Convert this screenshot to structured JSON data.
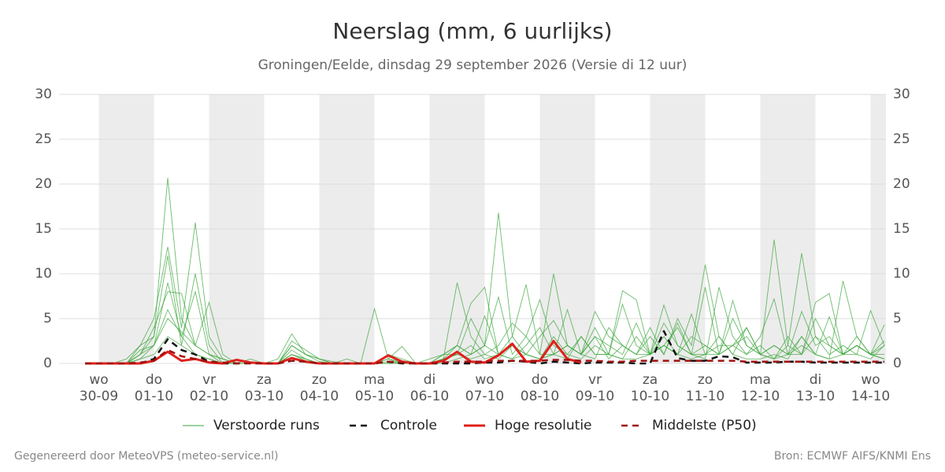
{
  "chart_data": {
    "type": "line",
    "title": "Neerslag (mm, 6 uurlijks)",
    "subtitle": "Groningen/Eelde, dinsdag 29 september 2026 (Versie di 12 uur)",
    "footer_left": "Gegenereerd door MeteoVPS (meteo-service.nl)",
    "footer_right": "Bron: ECMWF AIFS/KNMI Ens",
    "ylim": [
      0,
      30
    ],
    "yticks": [
      0,
      5,
      10,
      15,
      20,
      25,
      30
    ],
    "grid": true,
    "categories": [
      null,
      {
        "day": "wo",
        "date": "30-09"
      },
      null,
      null,
      null,
      {
        "day": "do",
        "date": "01-10"
      },
      null,
      null,
      null,
      {
        "day": "vr",
        "date": "02-10"
      },
      null,
      null,
      null,
      {
        "day": "za",
        "date": "03-10"
      },
      null,
      null,
      null,
      {
        "day": "zo",
        "date": "04-10"
      },
      null,
      null,
      null,
      {
        "day": "ma",
        "date": "05-10"
      },
      null,
      null,
      null,
      {
        "day": "di",
        "date": "06-10"
      },
      null,
      null,
      null,
      {
        "day": "wo",
        "date": "07-10"
      },
      null,
      null,
      null,
      {
        "day": "do",
        "date": "08-10"
      },
      null,
      null,
      null,
      {
        "day": "vr",
        "date": "09-10"
      },
      null,
      null,
      null,
      {
        "day": "za",
        "date": "10-10"
      },
      null,
      null,
      null,
      {
        "day": "zo",
        "date": "11-10"
      },
      null,
      null,
      null,
      {
        "day": "ma",
        "date": "12-10"
      },
      null,
      null,
      null,
      {
        "day": "di",
        "date": "13-10"
      },
      null,
      null,
      null,
      {
        "day": "wo",
        "date": "14-10"
      },
      null
    ],
    "ensemble": {
      "name": "Verstoorde runs",
      "color": "#3aa63a",
      "members": [
        [
          0,
          0,
          0,
          0,
          0.5,
          2,
          9,
          3,
          1,
          0.5,
          0,
          0,
          0,
          0,
          0,
          2,
          1,
          0.2,
          0,
          0,
          0,
          0,
          0.5,
          0.2,
          0,
          0,
          0.5,
          9,
          3,
          1,
          0.5,
          2,
          1,
          0.5,
          3,
          1,
          0.5,
          2,
          1,
          0.5,
          3,
          1,
          6.5,
          2,
          1,
          0.5,
          8.5,
          3,
          1,
          2,
          0.5,
          1,
          3,
          1,
          0.5,
          9.2,
          3,
          1,
          0.5
        ],
        [
          0,
          0,
          0,
          0,
          1,
          3,
          20.7,
          5,
          2,
          1,
          0,
          0,
          0,
          0,
          0,
          1,
          0.5,
          0,
          0,
          0,
          0,
          0,
          0,
          0,
          0,
          0,
          1,
          2,
          6.7,
          8.5,
          1,
          0.5,
          2,
          4,
          1,
          6,
          1,
          3,
          0.5,
          2,
          1,
          4,
          1,
          5,
          2,
          11,
          3,
          1,
          4,
          1,
          13.8,
          2,
          1,
          5,
          2,
          1,
          3,
          1,
          2
        ],
        [
          0,
          0,
          0,
          0.5,
          2,
          5,
          13,
          4,
          15.7,
          3,
          0.5,
          0,
          0,
          0,
          0.5,
          3.3,
          1,
          0.5,
          0.2,
          0,
          0,
          0,
          0,
          0.3,
          0,
          0,
          0.5,
          1,
          5,
          2,
          16.8,
          3,
          1,
          0.5,
          1,
          2,
          1,
          0.5,
          4,
          2,
          1,
          3,
          1,
          4.5,
          1,
          2,
          1,
          5,
          2,
          1,
          0.5,
          2,
          12.3,
          3,
          1,
          2,
          1,
          0.5,
          2
        ],
        [
          0,
          0,
          0,
          0,
          1,
          4,
          8,
          7.8,
          2,
          6.8,
          1,
          0,
          0.5,
          0,
          0,
          1,
          0.3,
          0,
          0,
          0,
          0,
          6.1,
          0.5,
          0,
          0,
          0,
          0.5,
          2,
          1,
          5.3,
          1,
          3,
          8.8,
          1,
          10,
          2,
          1,
          4,
          1,
          6.6,
          2,
          1,
          2,
          4,
          1,
          1,
          1,
          7,
          2,
          1,
          0.5,
          3,
          1,
          6.8,
          7.8,
          1,
          2,
          1,
          4.3
        ],
        [
          0,
          0,
          0,
          0,
          2,
          3,
          12,
          2,
          10,
          2,
          0,
          0,
          0,
          0,
          0,
          2.5,
          1.5,
          0.5,
          0,
          0,
          0,
          0,
          0.5,
          1.9,
          0,
          0,
          1,
          2,
          1,
          2,
          7.4,
          1,
          3,
          7.1,
          2,
          1,
          3,
          1,
          1,
          8.1,
          7.1,
          1,
          3,
          1,
          5.5,
          1,
          2,
          2,
          1,
          3,
          7.2,
          1,
          2,
          1,
          5.2,
          1,
          2,
          1,
          0.5
        ],
        [
          0,
          0,
          0,
          0,
          1.5,
          2,
          6,
          3,
          8,
          1,
          0.5,
          0,
          0,
          0,
          0,
          1.5,
          0.5,
          0,
          0,
          0.5,
          0,
          0,
          1,
          0.5,
          0,
          0.5,
          1,
          1,
          0.5,
          1,
          2,
          4.5,
          3,
          1,
          1,
          2,
          1,
          5.8,
          3,
          2,
          1,
          1,
          4.5,
          2,
          1,
          8.5,
          1,
          2,
          3,
          1,
          2,
          1,
          5.8,
          2,
          3,
          1,
          1,
          5.9,
          2
        ],
        [
          0,
          0,
          0,
          0,
          0.5,
          1,
          3,
          2,
          1,
          0.5,
          0,
          0,
          0,
          0,
          0,
          1,
          0.5,
          0,
          0,
          0,
          0,
          0,
          0.2,
          0,
          0,
          0,
          0,
          0.5,
          1,
          2,
          1,
          0.5,
          1,
          0.5,
          1,
          0.5,
          3,
          1,
          1,
          0.5,
          0.5,
          1,
          2,
          1,
          0.5,
          1,
          3,
          1,
          0.5,
          0.5,
          1,
          0.5,
          3,
          1,
          0.5,
          1,
          2,
          1,
          1
        ],
        [
          0,
          0,
          0,
          0,
          1,
          2,
          5,
          3.5,
          2,
          1,
          0.5,
          0,
          0,
          0,
          0,
          2,
          1,
          0.5,
          0,
          0,
          0,
          0,
          1,
          0,
          0,
          0,
          0.5,
          1,
          2,
          0.5,
          1,
          2,
          1,
          3,
          4.8,
          2,
          1,
          3,
          2,
          1,
          4.5,
          1,
          2,
          1,
          3,
          2,
          1,
          2,
          4,
          1,
          2,
          1,
          1,
          3,
          2,
          1,
          2,
          1,
          2.5
        ]
      ]
    },
    "series": [
      {
        "name": "Controle",
        "color": "#111111",
        "style": "dashed",
        "values": [
          0,
          0,
          0,
          0,
          0,
          0.5,
          2.7,
          1.5,
          1,
          0.2,
          0,
          0,
          0.1,
          0,
          0,
          0.3,
          0.2,
          0,
          0,
          0,
          0,
          0,
          0.2,
          0,
          0,
          0,
          0,
          0,
          0,
          0.1,
          0.1,
          0.3,
          0.2,
          0,
          0.2,
          0.1,
          0,
          0.1,
          0.1,
          0.1,
          0,
          0,
          3.6,
          0.6,
          0.3,
          0.3,
          0.8,
          0.7,
          0.1,
          0.1,
          0.1,
          0.2,
          0.2,
          0.1,
          0.1,
          0.1,
          0.1,
          0.1,
          0.1
        ]
      },
      {
        "name": "Hoge resolutie",
        "color": "#e0201b",
        "style": "solid",
        "values": [
          0,
          0,
          0,
          0,
          0,
          0.3,
          1.3,
          0.3,
          0.5,
          0.1,
          0,
          0.4,
          0.1,
          0,
          0,
          0.6,
          0.2,
          0,
          0,
          0,
          0,
          0,
          0.9,
          0.2,
          0,
          0,
          0.3,
          1.3,
          0.2,
          0.1,
          0.9,
          2.2,
          0.2,
          0.3,
          2.5,
          0.5,
          0.1,
          null,
          null,
          null,
          null,
          null,
          null,
          null,
          null,
          null,
          null,
          null,
          null,
          null,
          null,
          null,
          null,
          null,
          null,
          null,
          null,
          null,
          null
        ]
      },
      {
        "name": "Middelste (P50)",
        "color": "#a01010",
        "style": "dashed",
        "values": [
          0,
          0,
          0,
          0,
          0.1,
          0.3,
          1.5,
          0.8,
          0.5,
          0.2,
          0.1,
          0,
          0,
          0,
          0,
          0.3,
          0.2,
          0,
          0,
          0,
          0,
          0,
          0.2,
          0.1,
          0,
          0,
          0.1,
          0.2,
          0.2,
          0.2,
          0.3,
          0.3,
          0.3,
          0.3,
          0.4,
          0.4,
          0.3,
          0.3,
          0.2,
          0.2,
          0.3,
          0.3,
          0.3,
          0.3,
          0.3,
          0.3,
          0.3,
          0.3,
          0.2,
          0.2,
          0.2,
          0.2,
          0.2,
          0.2,
          0.2,
          0.2,
          0.2,
          0.2,
          0.2
        ]
      }
    ]
  }
}
